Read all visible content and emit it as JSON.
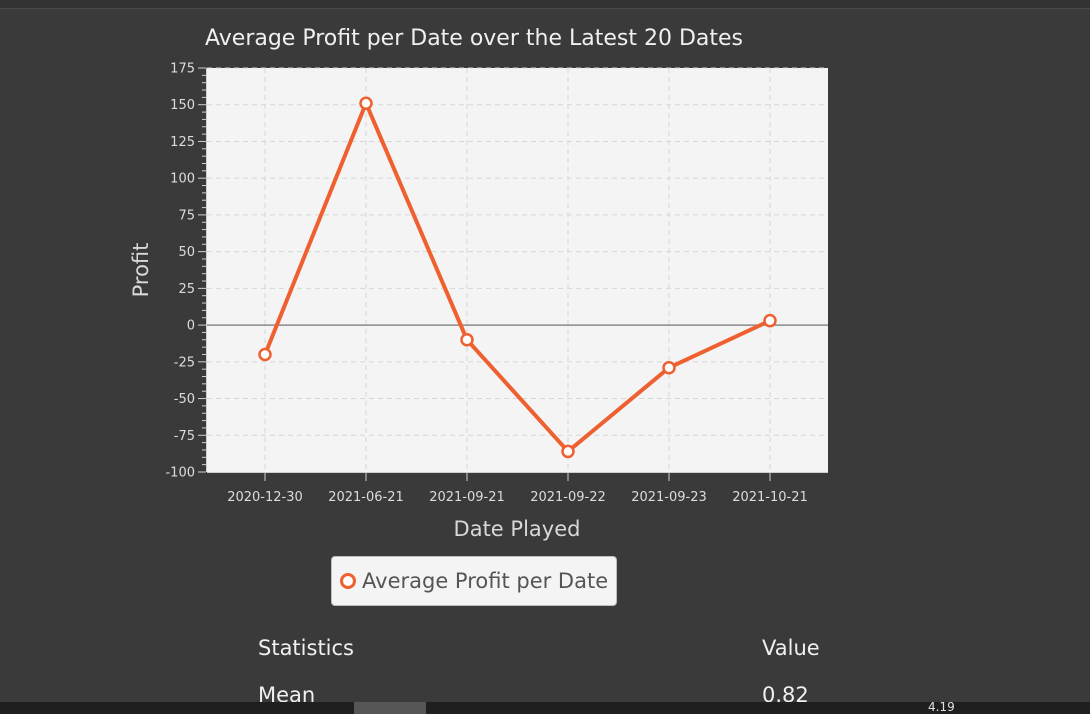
{
  "chart_data": {
    "type": "line",
    "title": "Average Profit per Date over the Latest 20 Dates",
    "xlabel": "Date Played",
    "ylabel": "Profit",
    "categories": [
      "2020-12-30",
      "2021-06-21",
      "2021-09-21",
      "2021-09-22",
      "2021-09-23",
      "2021-10-21"
    ],
    "series": [
      {
        "name": "Average Profit per Date",
        "values": [
          -20,
          151,
          -10,
          -86,
          -29,
          3
        ]
      }
    ],
    "ylim": [
      -100,
      175
    ],
    "yticks": [
      175,
      150,
      125,
      100,
      75,
      50,
      25,
      0,
      -25,
      -50,
      -75,
      -100
    ],
    "grid": true,
    "legend_position": "bottom",
    "series_color": "#ef6030",
    "plot_background": "#f4f4f4"
  },
  "statistics": {
    "header_left": "Statistics",
    "header_right": "Value",
    "rows": [
      {
        "label": "Mean",
        "value": "0.82"
      }
    ]
  },
  "footer": {
    "partial_text": "4.19"
  }
}
